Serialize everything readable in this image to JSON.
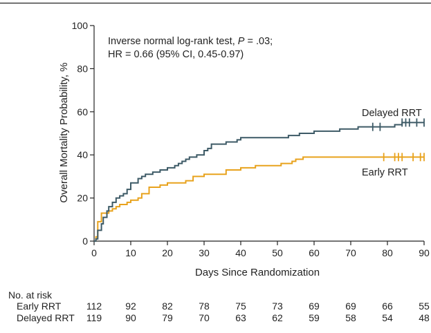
{
  "annotation": {
    "line1_prefix": "Inverse normal log-rank test, ",
    "line1_p": "P",
    "line1_suffix": " = .03;",
    "line2": "HR = 0.66 (95% CI, 0.45-0.97)"
  },
  "risk_table": {
    "title": "No. at risk",
    "rows": [
      {
        "label": "Early RRT",
        "counts": [
          "112",
          "92",
          "82",
          "78",
          "75",
          "73",
          "69",
          "69",
          "66",
          "55"
        ]
      },
      {
        "label": "Delayed RRT",
        "counts": [
          "119",
          "90",
          "79",
          "70",
          "63",
          "62",
          "59",
          "58",
          "54",
          "48"
        ]
      }
    ]
  },
  "chart_data": {
    "type": "line",
    "step": true,
    "xlabel": "Days Since Randomization",
    "ylabel": "Overall Mortality Probability, %",
    "xlim": [
      0,
      90
    ],
    "ylim": [
      0,
      100
    ],
    "xticks": [
      0,
      10,
      20,
      30,
      40,
      50,
      60,
      70,
      80,
      90
    ],
    "yticks": [
      0,
      20,
      40,
      60,
      80,
      100
    ],
    "grid": false,
    "series": [
      {
        "name": "Delayed RRT",
        "color": "#3d5a66",
        "points": [
          [
            0,
            0
          ],
          [
            0.5,
            1
          ],
          [
            1,
            5
          ],
          [
            2,
            8
          ],
          [
            2.5,
            11
          ],
          [
            3,
            11
          ],
          [
            3.5,
            14
          ],
          [
            4,
            16
          ],
          [
            5,
            18
          ],
          [
            6,
            20
          ],
          [
            7,
            21
          ],
          [
            8,
            22
          ],
          [
            9,
            24
          ],
          [
            10,
            27
          ],
          [
            12,
            29
          ],
          [
            13,
            30
          ],
          [
            14,
            31
          ],
          [
            16,
            32
          ],
          [
            18,
            33
          ],
          [
            20,
            34
          ],
          [
            22,
            35
          ],
          [
            23,
            36
          ],
          [
            24,
            37
          ],
          [
            25,
            38
          ],
          [
            26,
            39
          ],
          [
            28,
            40
          ],
          [
            30,
            42
          ],
          [
            31,
            43
          ],
          [
            32,
            45
          ],
          [
            36,
            46
          ],
          [
            39,
            47
          ],
          [
            40,
            48
          ],
          [
            53,
            49
          ],
          [
            56,
            50
          ],
          [
            60,
            51
          ],
          [
            67,
            52
          ],
          [
            72,
            53
          ],
          [
            78,
            53
          ],
          [
            82,
            54
          ],
          [
            84,
            55
          ],
          [
            90,
            55
          ]
        ],
        "censor_x": [
          76,
          78,
          84,
          85,
          86,
          88,
          90
        ]
      },
      {
        "name": "Early RRT",
        "color": "#e8a21c",
        "points": [
          [
            0,
            0
          ],
          [
            0.5,
            2
          ],
          [
            1,
            9
          ],
          [
            2,
            13
          ],
          [
            4,
            14
          ],
          [
            5,
            15
          ],
          [
            6,
            16
          ],
          [
            7,
            17
          ],
          [
            9,
            18
          ],
          [
            10,
            19
          ],
          [
            12,
            20
          ],
          [
            13,
            22
          ],
          [
            15,
            25
          ],
          [
            18,
            26
          ],
          [
            20,
            27
          ],
          [
            25,
            28
          ],
          [
            27,
            30
          ],
          [
            30,
            31
          ],
          [
            36,
            33
          ],
          [
            40,
            34
          ],
          [
            44,
            35
          ],
          [
            51,
            36
          ],
          [
            54,
            37
          ],
          [
            55,
            38
          ],
          [
            57,
            39
          ],
          [
            90,
            39
          ]
        ],
        "censor_x": [
          79,
          82,
          83,
          84,
          87,
          89,
          90
        ]
      }
    ],
    "labels": {
      "delayed": "Delayed RRT",
      "early": "Early RRT"
    },
    "colors": {
      "delayed": "#3d5a66",
      "early": "#e8a21c"
    }
  }
}
